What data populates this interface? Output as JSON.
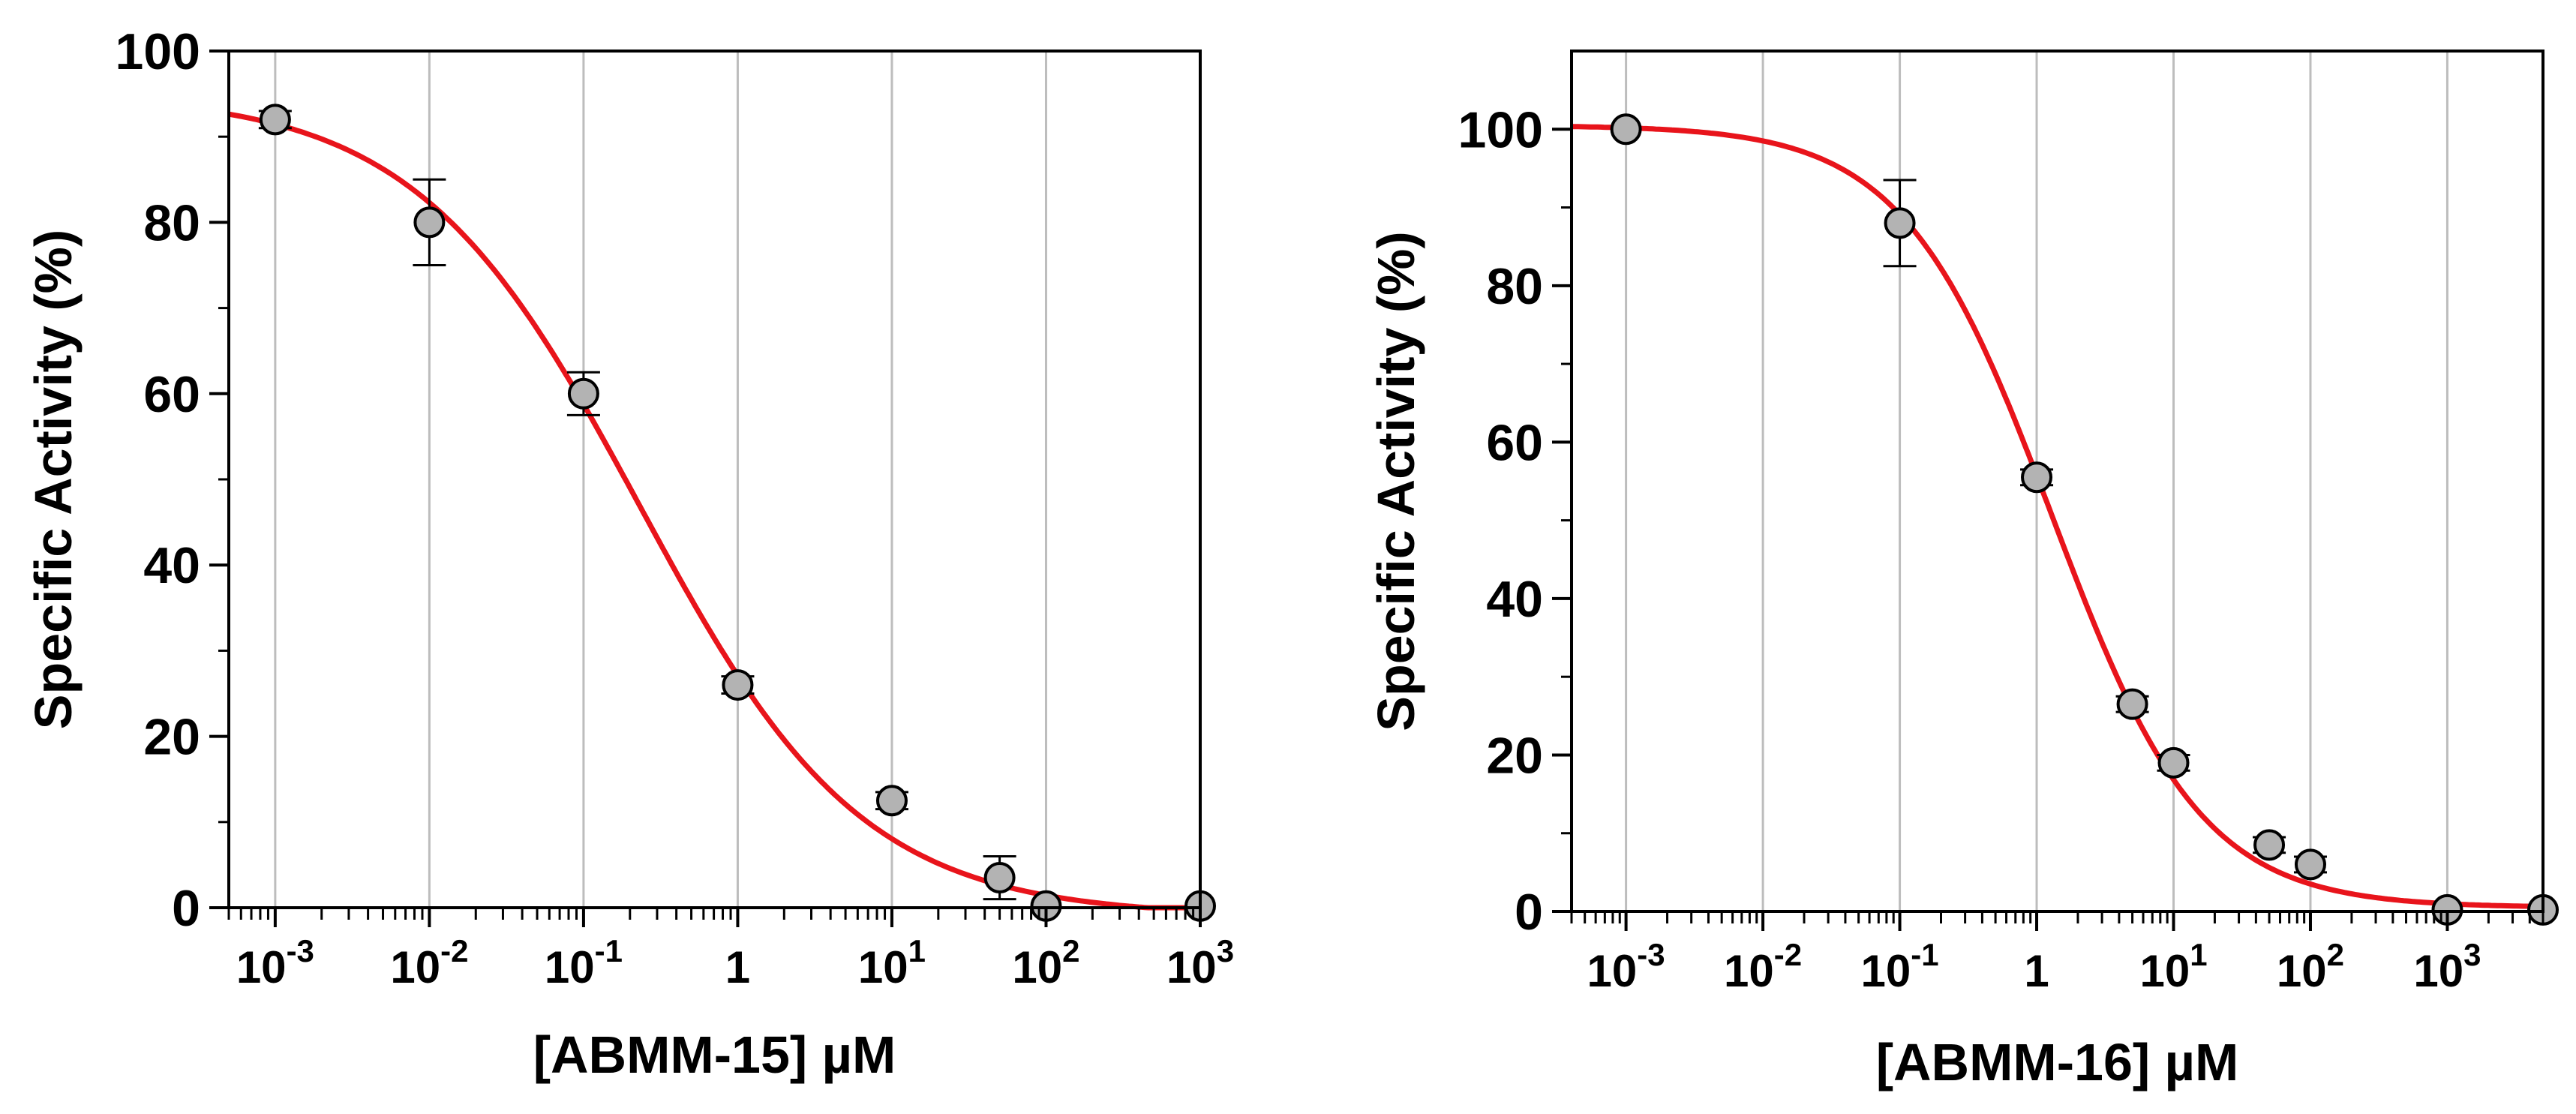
{
  "chart_data": [
    {
      "type": "scatter",
      "title": "",
      "xlabel": "[ABMM-15] µM",
      "ylabel": "Specific Activity (%)",
      "xscale": "log",
      "xlim": [
        0.0005,
        1000
      ],
      "ylim": [
        0,
        100
      ],
      "y_ticks": [
        0,
        20,
        40,
        60,
        80,
        100
      ],
      "x_ticks": [
        {
          "value": 0.001,
          "base": "10",
          "exp": "-3"
        },
        {
          "value": 0.01,
          "base": "10",
          "exp": "-2"
        },
        {
          "value": 0.1,
          "base": "10",
          "exp": "-1"
        },
        {
          "value": 1,
          "base": "1",
          "exp": ""
        },
        {
          "value": 10,
          "base": "10",
          "exp": "1"
        },
        {
          "value": 100,
          "base": "10",
          "exp": "2"
        },
        {
          "value": 1000,
          "base": "10",
          "exp": "3"
        }
      ],
      "grid": "vertical at decades",
      "points": [
        {
          "x": 0.001,
          "y": 92,
          "err": 1
        },
        {
          "x": 0.01,
          "y": 80,
          "err": 5
        },
        {
          "x": 0.1,
          "y": 60,
          "err": 2.5
        },
        {
          "x": 1,
          "y": 26,
          "err": 1
        },
        {
          "x": 10,
          "y": 12.5,
          "err": 1
        },
        {
          "x": 50,
          "y": 3.5,
          "err": 2.5
        },
        {
          "x": 100,
          "y": 0.2,
          "err": 0.5
        },
        {
          "x": 1000,
          "y": 0.2,
          "err": 0.5
        }
      ],
      "fit": {
        "model": "four-parameter logistic",
        "top": 95,
        "bottom": -1,
        "ic50": 0.23,
        "hill": 0.6,
        "color": "#e8141b"
      },
      "marker_color": "#b3b3b3"
    },
    {
      "type": "scatter",
      "title": "",
      "xlabel": "[ABMM-16] µM",
      "ylabel": "Specific Activity (%)",
      "xscale": "log",
      "xlim": [
        0.0004,
        5000
      ],
      "ylim": [
        0,
        110
      ],
      "y_ticks": [
        0,
        20,
        40,
        60,
        80,
        100
      ],
      "x_ticks": [
        {
          "value": 0.001,
          "base": "10",
          "exp": "-3"
        },
        {
          "value": 0.01,
          "base": "10",
          "exp": "-2"
        },
        {
          "value": 0.1,
          "base": "10",
          "exp": "-1"
        },
        {
          "value": 1,
          "base": "1",
          "exp": ""
        },
        {
          "value": 10,
          "base": "10",
          "exp": "1"
        },
        {
          "value": 100,
          "base": "10",
          "exp": "2"
        },
        {
          "value": 1000,
          "base": "10",
          "exp": "3"
        }
      ],
      "grid": "vertical at decades",
      "points": [
        {
          "x": 0.001,
          "y": 100,
          "err": 0.5
        },
        {
          "x": 0.1,
          "y": 88,
          "err": 5.5
        },
        {
          "x": 1,
          "y": 55.5,
          "err": 1
        },
        {
          "x": 5,
          "y": 26.5,
          "err": 1
        },
        {
          "x": 10,
          "y": 19,
          "err": 1
        },
        {
          "x": 50,
          "y": 8.5,
          "err": 1
        },
        {
          "x": 100,
          "y": 6,
          "err": 1
        },
        {
          "x": 1000,
          "y": 0.2,
          "err": 0.5
        },
        {
          "x": 5000,
          "y": 0.2,
          "err": 0.5
        }
      ],
      "fit": {
        "model": "four-parameter logistic",
        "top": 100.5,
        "bottom": 0.5,
        "ic50": 1.3,
        "hill": 0.8,
        "color": "#e8141b"
      },
      "marker_color": "#b3b3b3"
    }
  ]
}
